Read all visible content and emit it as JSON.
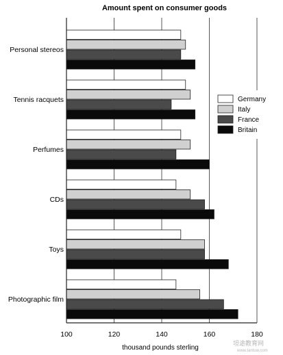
{
  "chart_data": {
    "type": "bar",
    "orientation": "horizontal",
    "title": "Amount spent on consumer goods",
    "xlabel": "thousand pounds sterling",
    "ylabel": "",
    "xlim": [
      100,
      180
    ],
    "xticks": [
      "100",
      "120",
      "140",
      "160",
      "180"
    ],
    "categories": [
      "Personal stereos",
      "Tennis racquets",
      "Perfumes",
      "CDs",
      "Toys",
      "Photographic film"
    ],
    "series": [
      {
        "name": "Germany",
        "color": "#ffffff",
        "values": [
          148,
          150,
          148,
          146,
          148,
          146
        ]
      },
      {
        "name": "Italy",
        "color": "#d0d0d0",
        "values": [
          150,
          152,
          152,
          152,
          158,
          156
        ]
      },
      {
        "name": "France",
        "color": "#4a4a4a",
        "values": [
          148,
          144,
          146,
          158,
          158,
          166
        ]
      },
      {
        "name": "Britain",
        "color": "#0a0a0a",
        "values": [
          154,
          154,
          160,
          162,
          168,
          172
        ]
      }
    ],
    "grid": true,
    "legend_position": "right"
  },
  "watermark": {
    "text": "坦途教育网",
    "url": "www.tantuw.com"
  }
}
